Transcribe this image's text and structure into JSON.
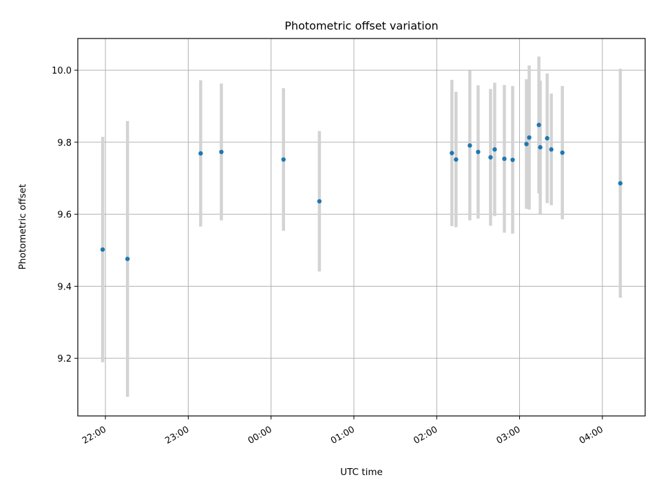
{
  "chart_data": {
    "type": "scatter",
    "title": "Photometric offset variation",
    "xlabel": "UTC time",
    "ylabel": "Photometric offset",
    "x_ticks": [
      "22:00",
      "23:00",
      "00:00",
      "01:00",
      "02:00",
      "03:00",
      "04:00"
    ],
    "y_ticks": [
      "9.2",
      "9.4",
      "9.6",
      "9.8",
      "10.0"
    ],
    "y_tick_values": [
      9.2,
      9.4,
      9.6,
      9.8,
      10.0
    ],
    "xlim": [
      "21:40",
      "04:31"
    ],
    "ylim": [
      9.04,
      10.088
    ],
    "grid": true,
    "errorbar_color": "#d3d3d3",
    "point_color": "#1f77b4",
    "points": [
      {
        "x": "21:58",
        "y": 9.502,
        "yerr": 0.313
      },
      {
        "x": "22:16",
        "y": 9.476,
        "yerr": 0.383
      },
      {
        "x": "23:09",
        "y": 9.769,
        "yerr": 0.203
      },
      {
        "x": "23:24",
        "y": 9.773,
        "yerr": 0.19
      },
      {
        "x": "00:09",
        "y": 9.752,
        "yerr": 0.198
      },
      {
        "x": "00:35",
        "y": 9.636,
        "yerr": 0.195
      },
      {
        "x": "02:11",
        "y": 9.77,
        "yerr": 0.203
      },
      {
        "x": "02:14",
        "y": 9.752,
        "yerr": 0.188
      },
      {
        "x": "02:24",
        "y": 9.791,
        "yerr": 0.208
      },
      {
        "x": "02:30",
        "y": 9.773,
        "yerr": 0.185
      },
      {
        "x": "02:39",
        "y": 9.758,
        "yerr": 0.19
      },
      {
        "x": "02:42",
        "y": 9.78,
        "yerr": 0.185
      },
      {
        "x": "02:49",
        "y": 9.754,
        "yerr": 0.205
      },
      {
        "x": "02:55",
        "y": 9.751,
        "yerr": 0.205
      },
      {
        "x": "03:05",
        "y": 9.795,
        "yerr": 0.18
      },
      {
        "x": "03:07",
        "y": 9.813,
        "yerr": 0.2
      },
      {
        "x": "03:14",
        "y": 9.848,
        "yerr": 0.19
      },
      {
        "x": "03:15",
        "y": 9.786,
        "yerr": 0.185
      },
      {
        "x": "03:20",
        "y": 9.811,
        "yerr": 0.18
      },
      {
        "x": "03:23",
        "y": 9.78,
        "yerr": 0.155
      },
      {
        "x": "03:31",
        "y": 9.771,
        "yerr": 0.185
      },
      {
        "x": "04:13",
        "y": 9.686,
        "yerr": 0.318
      }
    ]
  }
}
